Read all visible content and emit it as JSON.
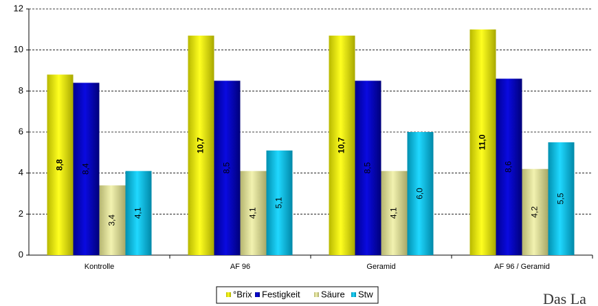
{
  "chart_data": {
    "type": "bar",
    "categories": [
      "Kontrolle",
      "AF 96",
      "Geramid",
      "AF 96 / Geramid"
    ],
    "series": [
      {
        "name": "°Brix",
        "color": "#e6e600",
        "values": [
          8.8,
          10.7,
          10.7,
          11.0
        ],
        "value_labels": [
          "8,8",
          "10,7",
          "10,7",
          "11,0"
        ]
      },
      {
        "name": "Festigkeit",
        "color": "#0000c8",
        "values": [
          8.4,
          8.5,
          8.5,
          8.6
        ],
        "value_labels": [
          "8,4",
          "8,5",
          "8,5",
          "8,6"
        ]
      },
      {
        "name": "Säure",
        "color": "#e2e29a",
        "values": [
          3.4,
          4.1,
          4.1,
          4.2
        ],
        "value_labels": [
          "3,4",
          "4,1",
          "4,1",
          "4,2"
        ]
      },
      {
        "name": "Stw",
        "color": "#00bde6",
        "values": [
          4.1,
          5.1,
          6.0,
          5.5
        ],
        "value_labels": [
          "4,1",
          "5,1",
          "6,0",
          "5,5"
        ]
      }
    ],
    "ylim": [
      0,
      12
    ],
    "yticks": [
      0,
      2,
      4,
      6,
      8,
      10,
      12
    ],
    "grid": true,
    "watermark": "Das La"
  }
}
